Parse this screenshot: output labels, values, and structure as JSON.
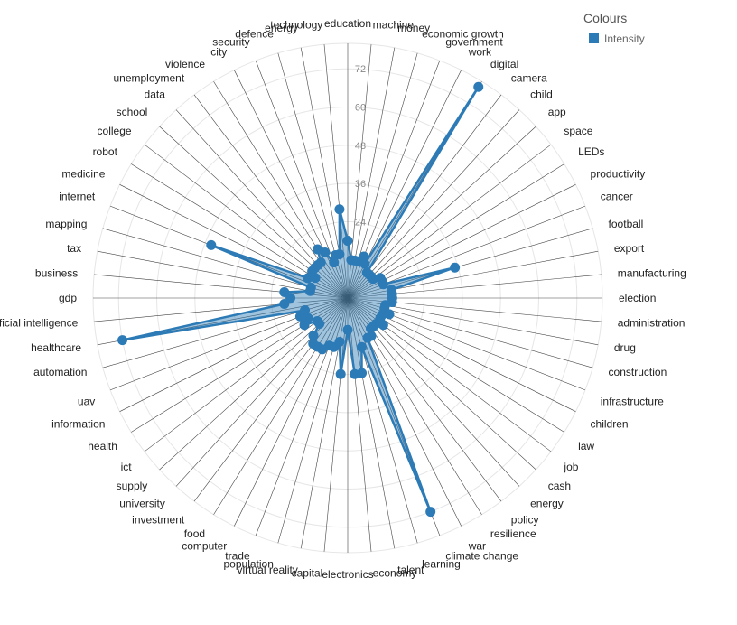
{
  "chart_data": {
    "type": "radar",
    "legend": {
      "title": "Colours",
      "items": [
        {
          "name": "Intensity",
          "color": "#2c7bb6"
        }
      ],
      "placement": "top-right"
    },
    "radial_ticks": [
      24,
      36,
      48,
      60,
      72
    ],
    "r_max": 80,
    "color": "#2c7bb6",
    "fill_color": "#2c7bb6",
    "categories": [
      "education",
      "machine",
      "money",
      "economic growth",
      "government",
      "work",
      "digital",
      "camera",
      "child",
      "app",
      "space",
      "LEDs",
      "productivity",
      "cancer",
      "football",
      "export",
      "manufacturing",
      "election",
      "administration",
      "drug",
      "construction",
      "infrastructure",
      "children",
      "law",
      "job",
      "cash",
      "energy",
      "policy",
      "resilience",
      "war",
      "climate change",
      "learning",
      "talent",
      "economy",
      "electronics",
      "capital",
      "virtual reality",
      "population",
      "trade",
      "computer",
      "food",
      "investment",
      "university",
      "supply",
      "ict",
      "health",
      "information",
      "uav",
      "automation",
      "healthcare",
      "artificial intelligence",
      "gdp",
      "business",
      "tax",
      "mapping",
      "internet",
      "medicine",
      "robot",
      "college",
      "school",
      "data",
      "unemployment",
      "violence",
      "city",
      "security",
      "defence",
      "energy",
      "technology"
    ],
    "values": [
      18,
      12,
      12,
      12,
      14,
      12,
      78,
      10,
      10,
      10,
      10,
      12,
      12,
      12,
      35,
      14,
      14,
      14,
      14,
      12,
      12,
      14,
      12,
      12,
      14,
      12,
      12,
      12,
      14,
      14,
      72,
      16,
      24,
      24,
      10,
      24,
      14,
      16,
      16,
      18,
      18,
      18,
      16,
      12,
      12,
      16,
      14,
      16,
      14,
      72,
      20,
      18,
      20,
      12,
      12,
      46,
      14,
      12,
      14,
      14,
      14,
      14,
      18,
      16,
      12,
      14,
      14,
      28
    ]
  }
}
